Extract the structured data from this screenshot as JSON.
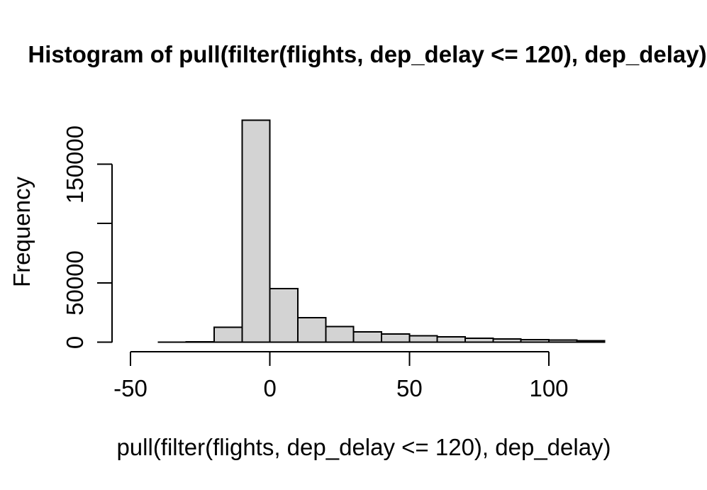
{
  "chart": {
    "title": "Histogram of pull(filter(flights, dep_delay <= 120), dep_delay)",
    "xlabel": "pull(filter(flights, dep_delay <= 120), dep_delay)",
    "ylabel": "Frequency"
  },
  "chart_data": {
    "type": "bar",
    "subtype": "histogram",
    "title": "Histogram of pull(filter(flights, dep_delay <= 120), dep_delay)",
    "xlabel": "pull(filter(flights, dep_delay <= 120), dep_delay)",
    "ylabel": "Frequency",
    "bin_edges": [
      -50,
      -40,
      -30,
      -20,
      -10,
      0,
      10,
      20,
      30,
      40,
      50,
      60,
      70,
      80,
      90,
      100,
      110,
      120
    ],
    "counts": [
      10,
      30,
      250,
      12500,
      187000,
      45000,
      20500,
      13000,
      8800,
      6800,
      5300,
      4400,
      3300,
      2800,
      2200,
      1900,
      1300
    ],
    "x_ticks": [
      -50,
      0,
      50,
      100
    ],
    "x_tick_labels": [
      "-50",
      "0",
      "50",
      "100"
    ],
    "y_ticks": [
      0,
      50000,
      100000,
      150000
    ],
    "y_tick_labels": [
      "0",
      "50000",
      "",
      "150000"
    ],
    "xlim": [
      -50,
      100
    ],
    "ylim": [
      0,
      150000
    ],
    "grid": "off",
    "legend": "none",
    "bar_fill": "#d3d3d3",
    "bar_stroke": "#000000",
    "axis_color": "#000000"
  }
}
